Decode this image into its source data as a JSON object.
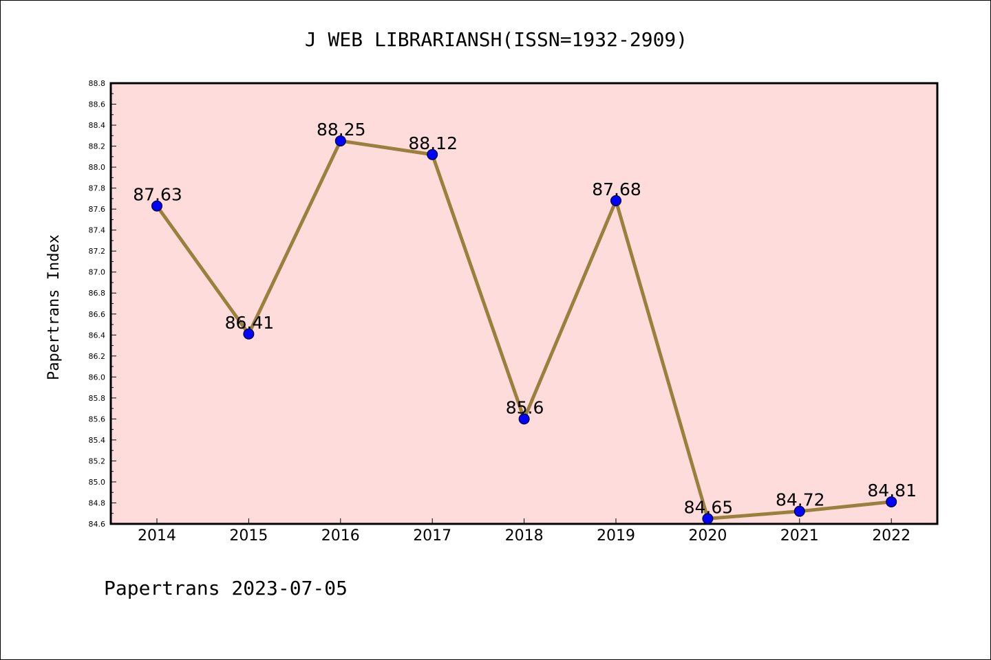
{
  "chart_data": {
    "type": "line",
    "title": "J WEB LIBRARIANSH(ISSN=1932-2909)",
    "ylabel": "Papertrans Index",
    "xlabel": "",
    "categories": [
      "2014",
      "2015",
      "2016",
      "2017",
      "2018",
      "2019",
      "2020",
      "2021",
      "2022"
    ],
    "values": [
      87.63,
      86.41,
      88.25,
      88.12,
      85.6,
      87.68,
      84.65,
      84.72,
      84.81
    ],
    "data_labels": [
      "87.63",
      "86.41",
      "88.25",
      "88.12",
      "85.6",
      "87.68",
      "84.65",
      "84.72",
      "84.81"
    ],
    "ylim": [
      84.6,
      88.8
    ],
    "y_ticks": [
      "84.6",
      "84.8",
      "85.0",
      "85.2",
      "85.4",
      "85.6",
      "85.8",
      "86.0",
      "86.2",
      "86.4",
      "86.6",
      "86.8",
      "87.0",
      "87.2",
      "87.4",
      "87.6",
      "87.8",
      "88.0",
      "88.2",
      "88.4",
      "88.6",
      "88.8"
    ],
    "grid": false,
    "colors": {
      "plot_background": "#fddcdb",
      "line": "#9b7f3c",
      "marker": "#0000ff"
    }
  },
  "footer": "Papertrans 2023-07-05"
}
